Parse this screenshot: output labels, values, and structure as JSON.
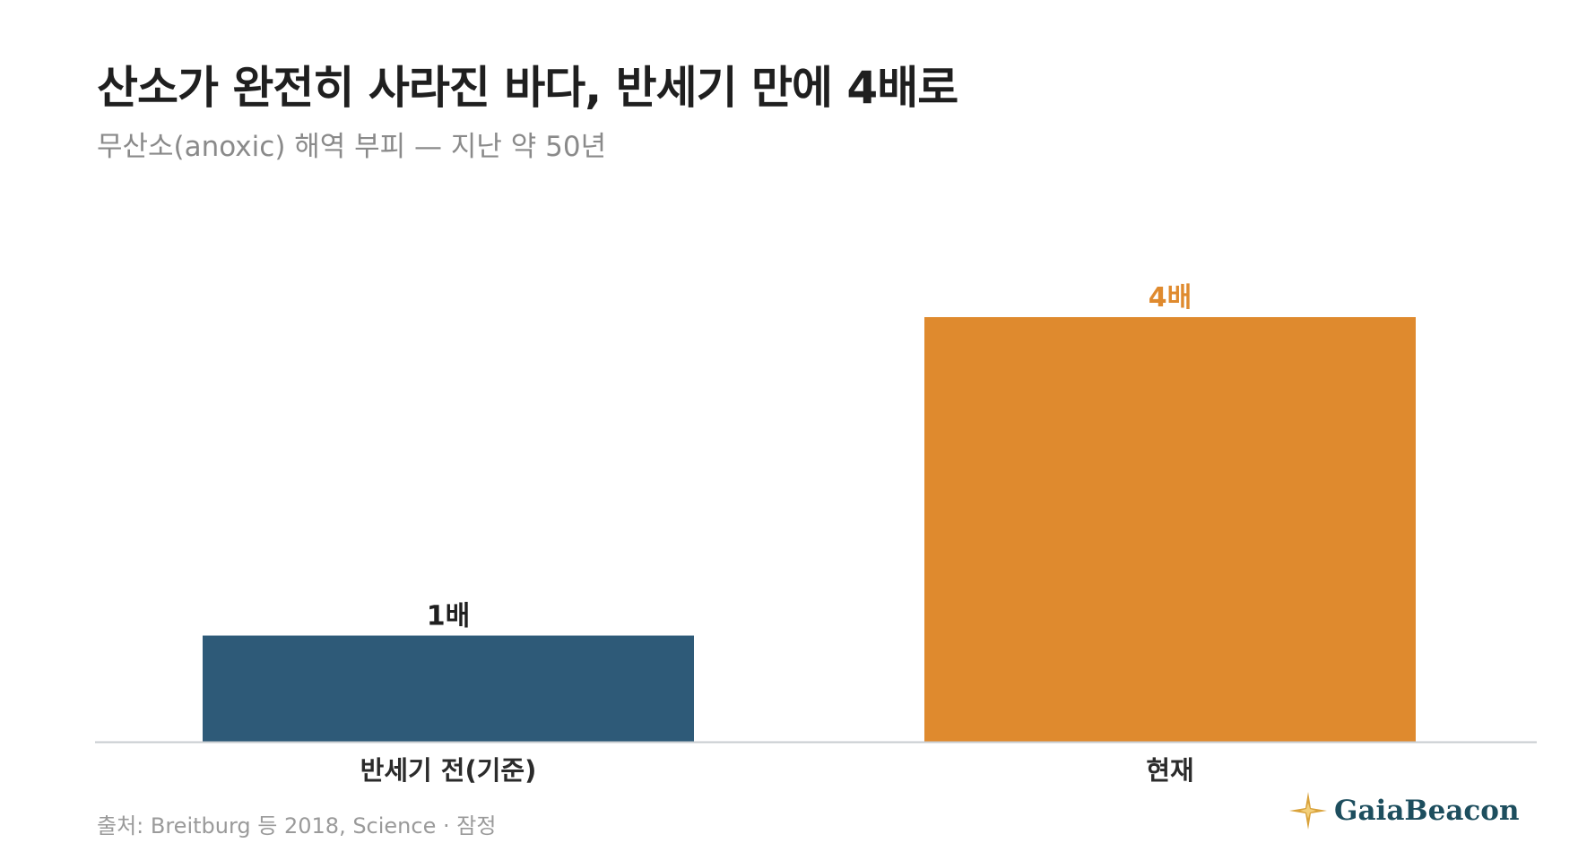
{
  "header": {
    "title": "산소가 완전히 사라진 바다, 반세기 만에 4배로",
    "subtitle": "무산소(anoxic) 해역 부피 — 지난 약 50년"
  },
  "chart_data": {
    "type": "bar",
    "categories": [
      "반세기 전(기준)",
      "현재"
    ],
    "values": [
      1,
      4
    ],
    "value_labels": [
      "1배",
      "4배"
    ],
    "bar_colors": [
      "#2e5a78",
      "#df8a2e"
    ],
    "value_label_colors": [
      "#1f1f1f",
      "#df8a2e"
    ],
    "ylim": [
      0,
      4
    ],
    "grid": false,
    "legend": "none"
  },
  "footer": {
    "source": "출처: Breitburg 등 2018, Science · 잠정",
    "brand": "GaiaBeacon",
    "brand_icon": "compass-star-icon",
    "brand_icon_color": "#d9a23a"
  }
}
